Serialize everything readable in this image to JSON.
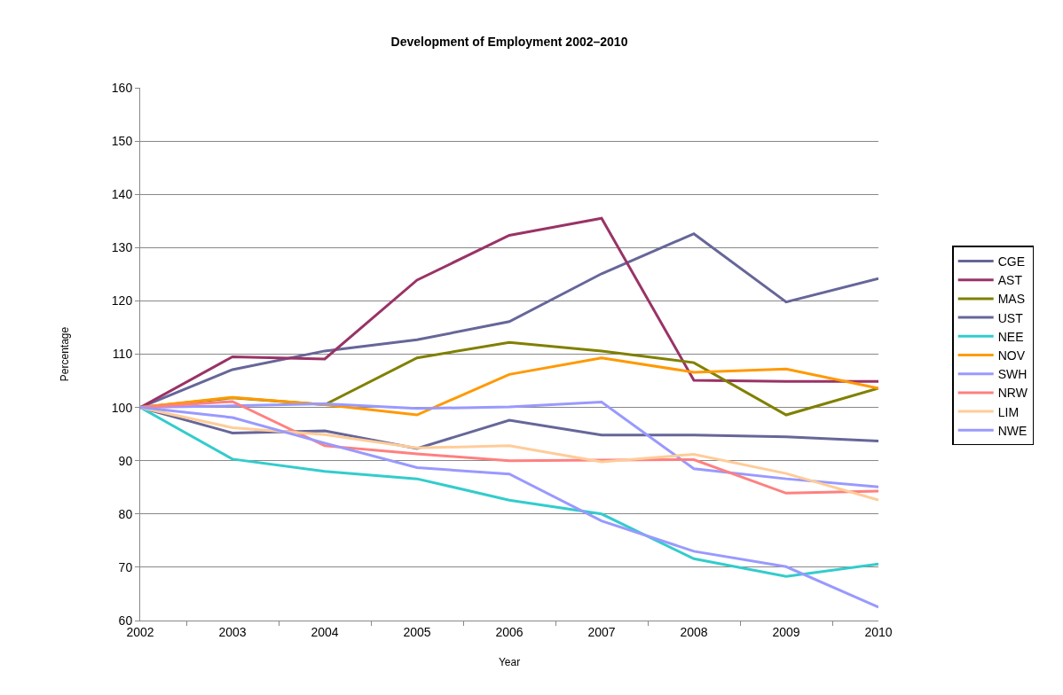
{
  "chart_data": {
    "type": "line",
    "title": "Development of Employment 2002–2010",
    "xlabel": "Year",
    "ylabel": "Percentage",
    "categories": [
      "2002",
      "2003",
      "2004",
      "2005",
      "2006",
      "2007",
      "2008",
      "2009",
      "2010"
    ],
    "series": [
      {
        "name": "CGE",
        "color": "#666699",
        "values": [
          100,
          107.1,
          110.6,
          112.7,
          116.1,
          125.1,
          132.6,
          119.8,
          124.2
        ]
      },
      {
        "name": "AST",
        "color": "#993366",
        "values": [
          100,
          109.5,
          109.1,
          123.9,
          132.3,
          135.5,
          105.1,
          104.9,
          104.9
        ]
      },
      {
        "name": "MAS",
        "color": "#808000",
        "values": [
          100,
          101.8,
          100.5,
          109.3,
          112.2,
          110.6,
          108.4,
          98.6,
          103.6
        ]
      },
      {
        "name": "UST",
        "color": "#666699",
        "values": [
          100,
          95.2,
          95.6,
          92.3,
          97.6,
          94.8,
          94.8,
          94.5,
          93.7
        ]
      },
      {
        "name": "NEE",
        "color": "#33cccc",
        "values": [
          100,
          90.3,
          88.0,
          86.6,
          82.6,
          80.0,
          71.6,
          68.3,
          70.6
        ]
      },
      {
        "name": "NOV",
        "color": "#ff9900",
        "values": [
          100,
          101.9,
          100.5,
          98.6,
          106.2,
          109.3,
          106.6,
          107.2,
          103.6
        ]
      },
      {
        "name": "SWH",
        "color": "#9999ff",
        "values": [
          100,
          100.3,
          100.7,
          99.8,
          100.1,
          101.0,
          88.5,
          86.6,
          85.1
        ]
      },
      {
        "name": "NRW",
        "color": "#ff8080",
        "values": [
          100,
          101.1,
          92.8,
          91.3,
          90.0,
          90.1,
          90.2,
          83.9,
          84.3
        ]
      },
      {
        "name": "LIM",
        "color": "#ffcc99",
        "values": [
          100,
          96.2,
          94.9,
          92.4,
          92.8,
          89.8,
          91.2,
          87.6,
          82.6
        ]
      },
      {
        "name": "NWE",
        "color": "#9999ff",
        "values": [
          100,
          98.1,
          93.3,
          88.7,
          87.5,
          78.7,
          73.0,
          70.1,
          62.5
        ]
      }
    ],
    "ylim": [
      60,
      160
    ],
    "yticks": [
      60,
      70,
      80,
      90,
      100,
      110,
      120,
      130,
      140,
      150,
      160
    ],
    "grid": "y",
    "legend": "right",
    "marker": "none",
    "line_style": "solid"
  }
}
